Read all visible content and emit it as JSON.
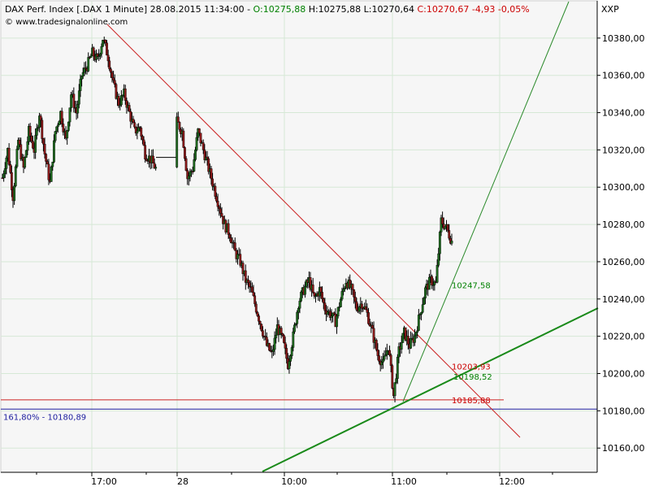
{
  "colors": {
    "background": "#ffffff",
    "plot_background": "#f6f6f6",
    "grid": "#d6e8d6",
    "axis": "#000000",
    "candle_up": "#1f6b1f",
    "candle_down": "#8b1a1a",
    "wick": "#000000",
    "trend_down": "#cc2222",
    "trend_up_steep": "#2a8a2a",
    "trend_up_shallow": "#1a8a1a",
    "support_red": "#cc2222",
    "fib_blue": "#2020a0",
    "text_header": "#000000",
    "text_green": "#008000",
    "text_red": "#cc0000",
    "text_blue": "#2020a0"
  },
  "header": {
    "title": "DAX Perf. Index [.DAX  1 Minute] 28.08.2015 11:34:00 - ",
    "open_label": "O:10275,88",
    "high_label": "H:10275,88",
    "low_label": "L:10270,64",
    "close_label": "C:10270,67",
    "change_label": "-4,93",
    "change_pct_label": "-0,05%",
    "website": "www.tradesignalonline.com",
    "symbol_tag": "XXP"
  },
  "annotations": {
    "fib_label": "161,80% - 10180,89",
    "line_label_1": "10247,58",
    "line_label_2": "10203,93",
    "line_label_3": "10198,52",
    "line_label_4": "10185,88"
  },
  "chart_data": {
    "type": "candlestick",
    "title": "DAX Perf. Index [.DAX  1 Minute] 28.08.2015 11:34:00",
    "y_range": [
      10147,
      10400
    ],
    "y_ticks": [
      10160,
      10180,
      10200,
      10220,
      10240,
      10260,
      10280,
      10300,
      10320,
      10340,
      10360,
      10380
    ],
    "y_tick_labels": [
      "10160,00",
      "10180,00",
      "10200,00",
      "10220,00",
      "10240,00",
      "10260,00",
      "10280,00",
      "10300,00",
      "10320,00",
      "10340,00",
      "10360,00",
      "10380,00"
    ],
    "x_tick_labels": [
      "17:00",
      "28",
      "10:00",
      "11:00",
      "12:00"
    ],
    "grid": true,
    "last_bar": {
      "open": 10275.88,
      "high": 10275.88,
      "low": 10270.64,
      "close": 10270.67,
      "change": -4.93,
      "change_pct": -0.05
    },
    "levels": [
      {
        "label": "161,80% - 10180,89",
        "value": 10180.89
      },
      {
        "label": "10185,88",
        "value": 10185.88
      }
    ],
    "line_values": [
      10247.58,
      10203.93,
      10198.52,
      10185.88
    ],
    "trendlines": [
      {
        "name": "down",
        "points": [
          [
            0.0,
            10382
          ],
          [
            1.0,
            10168
          ]
        ]
      },
      {
        "name": "up_steep",
        "points": [
          [
            0.0,
            10186
          ],
          [
            1.0,
            10412
          ]
        ]
      },
      {
        "name": "up_shallow",
        "points": [
          [
            0.0,
            10150
          ],
          [
            1.0,
            10235
          ]
        ]
      }
    ],
    "price_path": [
      [
        0,
        10305
      ],
      [
        2,
        10320
      ],
      [
        4,
        10295
      ],
      [
        6,
        10325
      ],
      [
        8,
        10310
      ],
      [
        10,
        10330
      ],
      [
        12,
        10320
      ],
      [
        14,
        10340
      ],
      [
        16,
        10318
      ],
      [
        18,
        10302
      ],
      [
        20,
        10330
      ],
      [
        22,
        10340
      ],
      [
        24,
        10325
      ],
      [
        26,
        10350
      ],
      [
        28,
        10340
      ],
      [
        30,
        10360
      ],
      [
        32,
        10365
      ],
      [
        34,
        10372
      ],
      [
        36,
        10368
      ],
      [
        38,
        10380
      ],
      [
        40,
        10370
      ],
      [
        42,
        10355
      ],
      [
        44,
        10345
      ],
      [
        46,
        10350
      ],
      [
        48,
        10340
      ],
      [
        50,
        10330
      ],
      [
        52,
        10332
      ],
      [
        54,
        10318
      ],
      [
        56,
        10315
      ],
      [
        58,
        10310
      ],
      [
        66,
        10335
      ],
      [
        68,
        10330
      ],
      [
        70,
        10305
      ],
      [
        72,
        10310
      ],
      [
        74,
        10330
      ],
      [
        76,
        10320
      ],
      [
        78,
        10310
      ],
      [
        80,
        10300
      ],
      [
        82,
        10290
      ],
      [
        84,
        10280
      ],
      [
        86,
        10275
      ],
      [
        88,
        10265
      ],
      [
        90,
        10260
      ],
      [
        92,
        10250
      ],
      [
        94,
        10245
      ],
      [
        96,
        10235
      ],
      [
        98,
        10225
      ],
      [
        100,
        10215
      ],
      [
        102,
        10210
      ],
      [
        104,
        10225
      ],
      [
        106,
        10218
      ],
      [
        108,
        10205
      ],
      [
        110,
        10220
      ],
      [
        112,
        10238
      ],
      [
        114,
        10245
      ],
      [
        116,
        10250
      ],
      [
        118,
        10240
      ],
      [
        120,
        10245
      ],
      [
        122,
        10235
      ],
      [
        124,
        10232
      ],
      [
        126,
        10228
      ],
      [
        128,
        10240
      ],
      [
        130,
        10250
      ],
      [
        132,
        10245
      ],
      [
        134,
        10235
      ],
      [
        136,
        10238
      ],
      [
        138,
        10232
      ],
      [
        140,
        10222
      ],
      [
        142,
        10210
      ],
      [
        144,
        10205
      ],
      [
        146,
        10215
      ],
      [
        148,
        10188
      ],
      [
        150,
        10212
      ],
      [
        152,
        10222
      ],
      [
        154,
        10215
      ],
      [
        156,
        10220
      ],
      [
        158,
        10232
      ],
      [
        160,
        10245
      ],
      [
        162,
        10250
      ],
      [
        164,
        10248
      ],
      [
        166,
        10282
      ],
      [
        168,
        10278
      ],
      [
        170,
        10271
      ]
    ]
  }
}
